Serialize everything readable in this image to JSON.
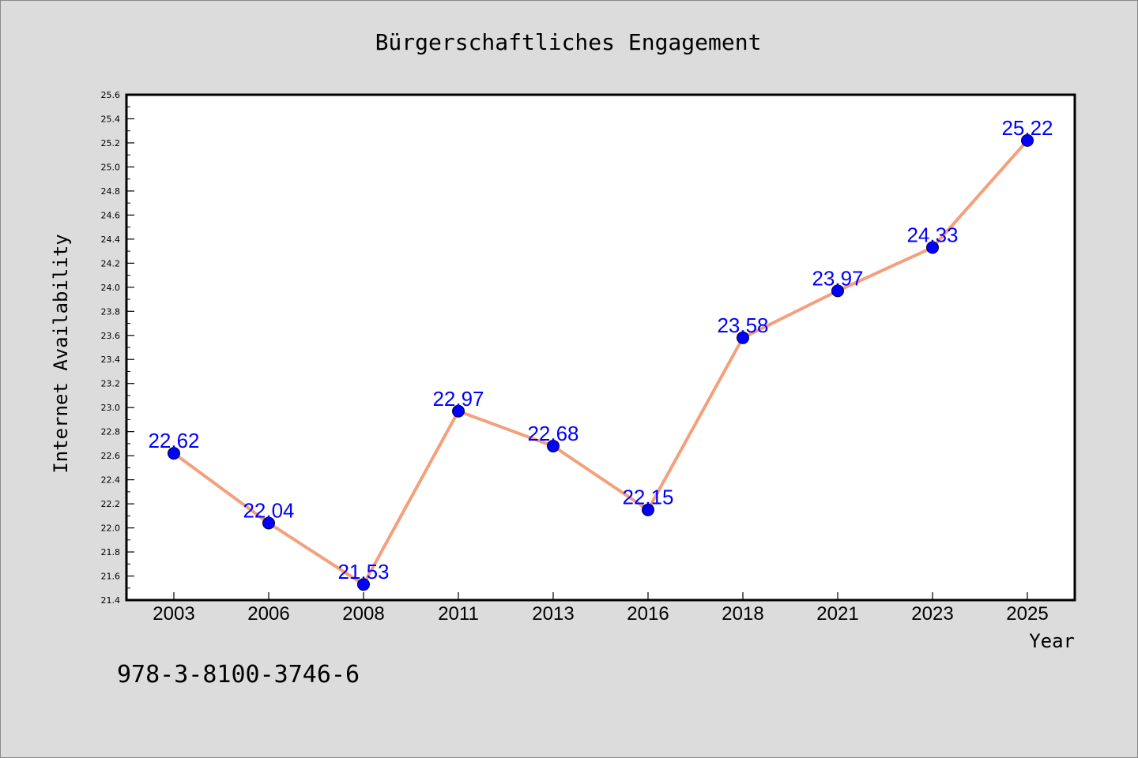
{
  "chart_data": {
    "type": "line",
    "title": "Bürgerschaftliches Engagement",
    "xlabel": "Year",
    "ylabel": "Internet Availability",
    "categories": [
      "2003",
      "2006",
      "2008",
      "2011",
      "2013",
      "2016",
      "2018",
      "2021",
      "2023",
      "2025"
    ],
    "series": [
      {
        "values": [
          22.62,
          22.04,
          21.53,
          22.97,
          22.68,
          22.15,
          23.58,
          23.97,
          24.33,
          25.22
        ],
        "data_labels": [
          "22.62",
          "22.04",
          "21.53",
          "22.97",
          "22.68",
          "22.15",
          "23.58",
          "23.97",
          "24.33",
          "25.22"
        ],
        "line_color": "#f4a07c",
        "marker_color": "#0000ff",
        "label_color": "#0000ff"
      }
    ],
    "ylim": [
      21.4,
      25.6
    ],
    "yticks": [
      "21.4",
      "21.6",
      "21.8",
      "22.0",
      "22.2",
      "22.4",
      "22.6",
      "22.8",
      "23.0",
      "23.2",
      "23.4",
      "23.6",
      "23.8",
      "24.0",
      "24.2",
      "24.4",
      "24.6",
      "24.8",
      "25.0",
      "25.2",
      "25.4",
      "25.6"
    ],
    "grid": false,
    "legend": "none",
    "annotation": "978-3-8100-3746-6"
  }
}
